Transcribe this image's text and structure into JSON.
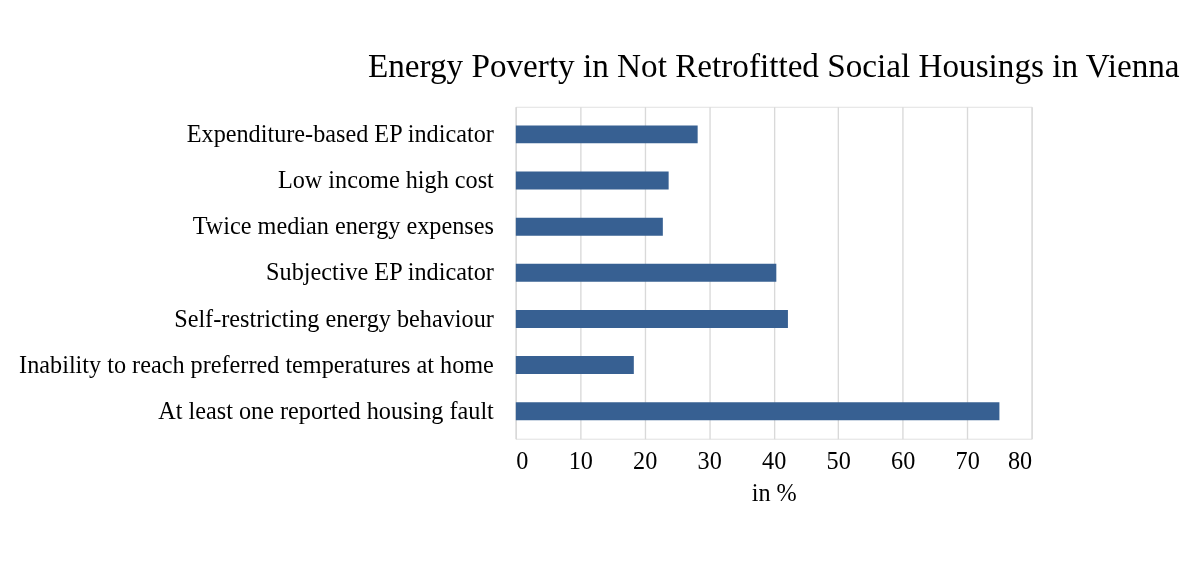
{
  "chart_data": {
    "type": "bar",
    "orientation": "horizontal",
    "title": "Energy Poverty in Not Retrofitted Social Housings in Vienna",
    "categories": [
      "Expenditure-based EP indicator",
      "Low income high cost",
      "Twice median energy expenses",
      "Subjective EP indicator",
      "Self-restricting energy behaviour",
      "Inability to reach preferred temperatures at home",
      "At least one reported housing fault"
    ],
    "values": [
      28.2,
      23.7,
      22.8,
      40.4,
      42.2,
      18.3,
      75.0
    ],
    "color": "#376092",
    "xlim": [
      0,
      80
    ],
    "xticks": [
      0,
      10,
      20,
      30,
      40,
      50,
      60,
      70,
      80
    ],
    "xlabel": "in %",
    "grid": "x"
  }
}
